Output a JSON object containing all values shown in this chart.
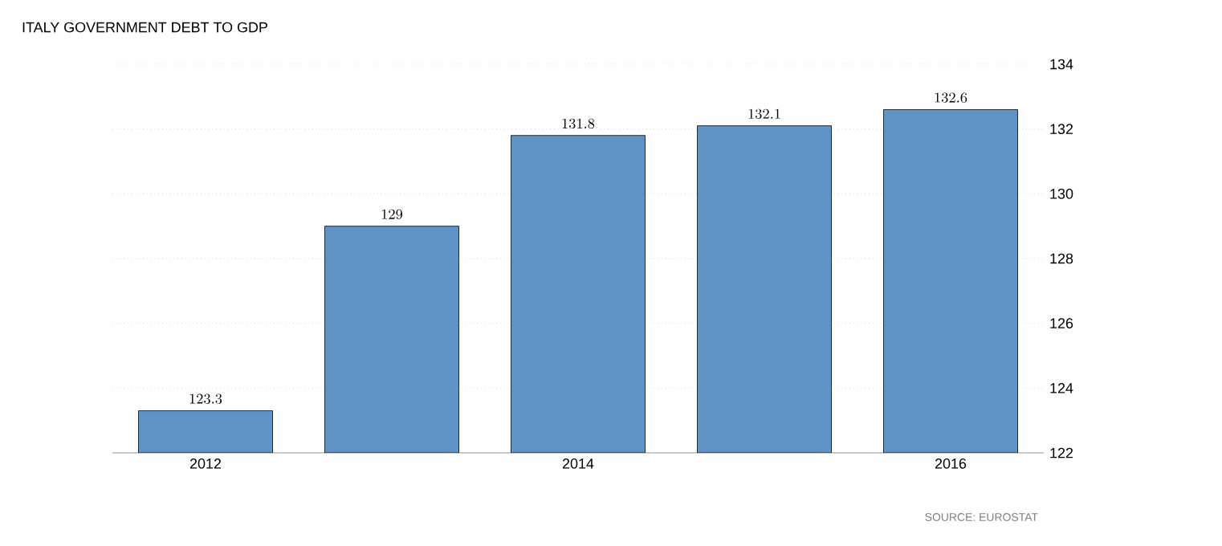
{
  "chart_data": {
    "type": "bar",
    "title": "ITALY GOVERNMENT DEBT TO GDP",
    "categories": [
      "2012",
      null,
      "2014",
      null,
      "2016"
    ],
    "values": [
      123.3,
      129,
      131.8,
      132.1,
      132.6
    ],
    "color": "#5f93c6",
    "ylim": [
      122,
      134
    ],
    "yticks": [
      122,
      124,
      126,
      128,
      130,
      132,
      134
    ],
    "grid": "y",
    "data_labels": true,
    "annotations": [
      "SOURCE: EUROSTAT"
    ]
  }
}
